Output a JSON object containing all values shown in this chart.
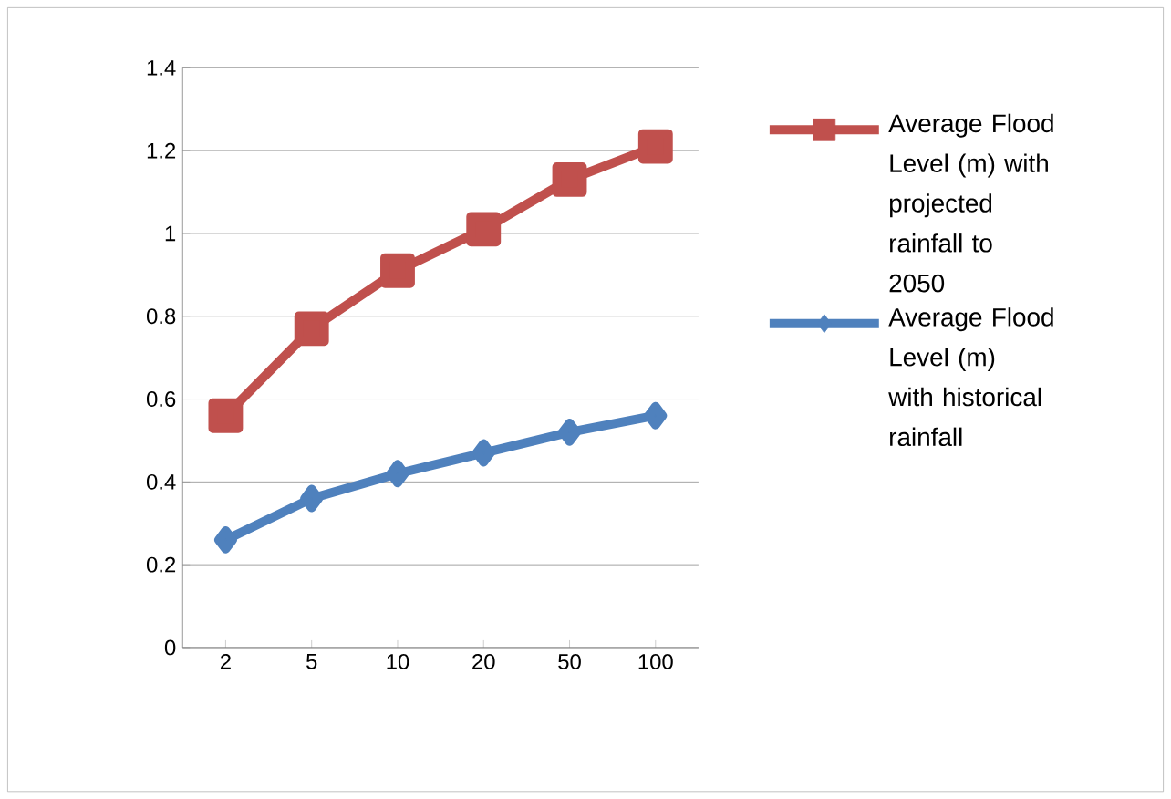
{
  "chart_data": {
    "type": "line",
    "categories": [
      "2",
      "5",
      "10",
      "20",
      "50",
      "100"
    ],
    "series": [
      {
        "name": "Average Flood Level (m) with projected rainfall to 2050",
        "color": "#c0504d",
        "marker": "square",
        "values": [
          0.56,
          0.77,
          0.91,
          1.01,
          1.13,
          1.21
        ]
      },
      {
        "name": "Average Flood Level (m) with historical rainfall",
        "color": "#4f81bd",
        "marker": "diamond",
        "values": [
          0.26,
          0.36,
          0.42,
          0.47,
          0.52,
          0.56
        ]
      }
    ],
    "ylim": [
      0,
      1.4
    ],
    "yticks": [
      0,
      0.2,
      0.4,
      0.6,
      0.8,
      1,
      1.2,
      1.4
    ],
    "grid": "y",
    "legend": "right",
    "line_style": "solid"
  }
}
